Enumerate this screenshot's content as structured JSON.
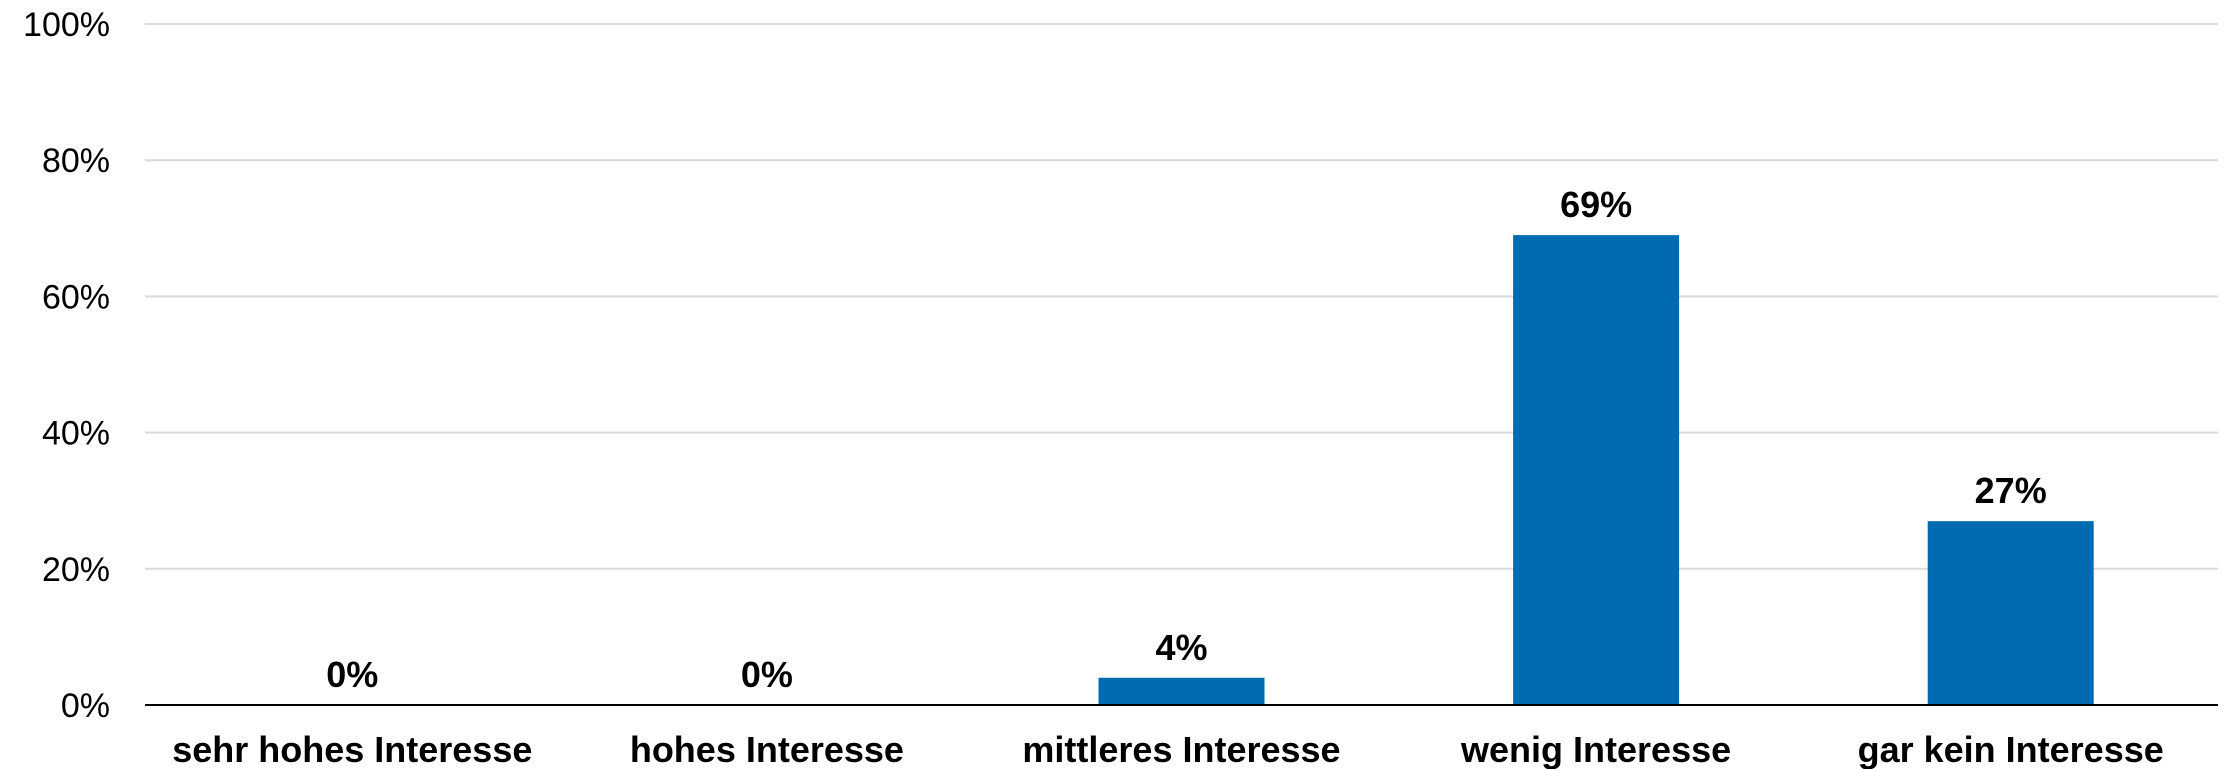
{
  "chart_data": {
    "type": "bar",
    "categories": [
      "sehr hohes Interesse",
      "hohes Interesse",
      "mittleres Interesse",
      "wenig Interesse",
      "gar kein Interesse"
    ],
    "values": [
      0,
      0,
      4,
      69,
      27
    ],
    "value_labels": [
      "0%",
      "0%",
      "4%",
      "69%",
      "27%"
    ],
    "title": "",
    "xlabel": "",
    "ylabel": "",
    "ylim": [
      0,
      100
    ],
    "yticks": [
      0,
      20,
      40,
      60,
      80,
      100
    ],
    "ytick_labels": [
      "0%",
      "20%",
      "40%",
      "60%",
      "80%",
      "100%"
    ],
    "grid": true,
    "legend": "none",
    "bar_color": "#006bb0"
  }
}
